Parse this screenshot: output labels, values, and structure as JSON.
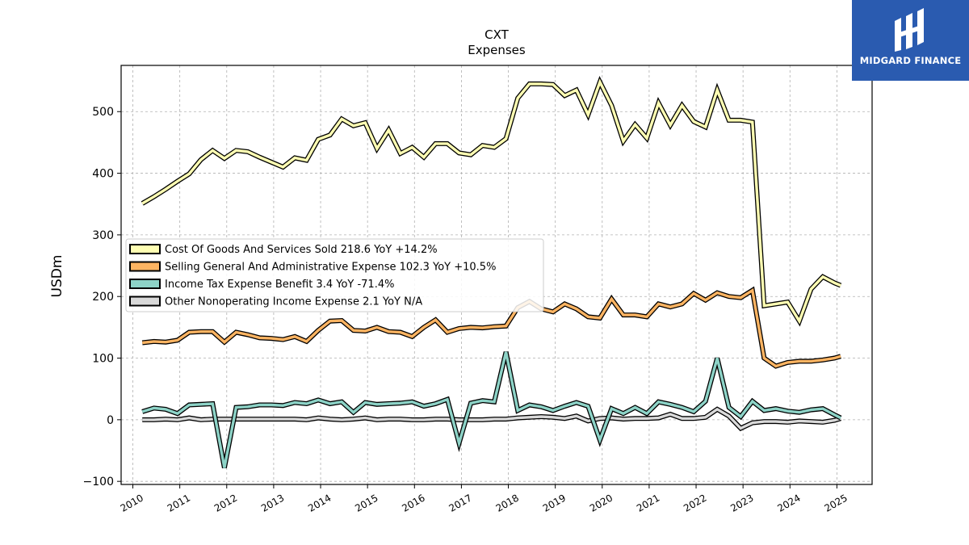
{
  "chart_data": {
    "type": "line",
    "title": "CXT",
    "subtitle": "Expenses",
    "ylabel": "USDm",
    "xlabel": "",
    "ylim": [
      -105,
      575
    ],
    "xlim": [
      2009.75,
      2025.75
    ],
    "yticks": [
      -100,
      0,
      100,
      200,
      300,
      400,
      500
    ],
    "ytick_labels": [
      "−100",
      "0",
      "100",
      "200",
      "300",
      "400",
      "500"
    ],
    "xticks": [
      2010,
      2011,
      2012,
      2013,
      2014,
      2015,
      2016,
      2017,
      2018,
      2019,
      2020,
      2021,
      2022,
      2023,
      2024,
      2025
    ],
    "xtick_labels": [
      "2010",
      "2011",
      "2012",
      "2013",
      "2014",
      "2015",
      "2016",
      "2017",
      "2018",
      "2019",
      "2020",
      "2021",
      "2022",
      "2023",
      "2024",
      "2025"
    ],
    "grid": true,
    "legend_position": "center-left",
    "series": [
      {
        "name": "Cost Of Goods And Services Sold",
        "legend": "Cost Of Goods And Services Sold  218.6 YoY +14.2%",
        "color": "#ffffb3",
        "x": [
          2010.2,
          2010.45,
          2010.7,
          2010.95,
          2011.2,
          2011.45,
          2011.7,
          2011.95,
          2012.2,
          2012.45,
          2012.7,
          2012.95,
          2013.2,
          2013.45,
          2013.7,
          2013.95,
          2014.2,
          2014.45,
          2014.7,
          2014.95,
          2015.2,
          2015.45,
          2015.7,
          2015.95,
          2016.2,
          2016.45,
          2016.7,
          2016.95,
          2017.2,
          2017.45,
          2017.7,
          2017.95,
          2018.2,
          2018.45,
          2018.7,
          2018.95,
          2019.2,
          2019.45,
          2019.7,
          2019.95,
          2020.2,
          2020.45,
          2020.7,
          2020.95,
          2021.2,
          2021.45,
          2021.7,
          2021.95,
          2022.2,
          2022.45,
          2022.7,
          2022.95,
          2023.2,
          2023.45,
          2023.7,
          2023.95,
          2024.2,
          2024.45,
          2024.7,
          2024.95,
          2025.08
        ],
        "values": [
          351,
          362,
          374,
          387,
          399,
          422,
          437,
          424,
          437,
          435,
          426,
          418,
          410,
          425,
          421,
          455,
          462,
          488,
          477,
          482,
          440,
          470,
          432,
          442,
          426,
          448,
          448,
          433,
          430,
          445,
          442,
          456,
          522,
          545,
          545,
          544,
          526,
          535,
          495,
          548,
          510,
          452,
          479,
          457,
          514,
          478,
          510,
          484,
          475,
          535,
          486,
          486,
          483,
          185,
          188,
          191,
          160,
          212,
          232,
          222,
          218
        ]
      },
      {
        "name": "Selling General And Administrative Expense",
        "legend": "Selling General And Administrative Expense  102.3 YoY +10.5%",
        "color": "#fdb462",
        "x": [
          2010.2,
          2010.45,
          2010.7,
          2010.95,
          2011.2,
          2011.45,
          2011.7,
          2011.95,
          2012.2,
          2012.45,
          2012.7,
          2012.95,
          2013.2,
          2013.45,
          2013.7,
          2013.95,
          2014.2,
          2014.45,
          2014.7,
          2014.95,
          2015.2,
          2015.45,
          2015.7,
          2015.95,
          2016.2,
          2016.45,
          2016.7,
          2016.95,
          2017.2,
          2017.45,
          2017.7,
          2017.95,
          2018.2,
          2018.45,
          2018.7,
          2018.95,
          2019.2,
          2019.45,
          2019.7,
          2019.95,
          2020.2,
          2020.45,
          2020.7,
          2020.95,
          2021.2,
          2021.45,
          2021.7,
          2021.95,
          2022.2,
          2022.45,
          2022.7,
          2022.95,
          2023.2,
          2023.45,
          2023.7,
          2023.95,
          2024.2,
          2024.45,
          2024.7,
          2024.95,
          2025.08
        ],
        "values": [
          125,
          127,
          126,
          129,
          142,
          143,
          143,
          126,
          142,
          138,
          133,
          132,
          130,
          135,
          127,
          145,
          160,
          161,
          145,
          144,
          150,
          143,
          142,
          135,
          150,
          162,
          142,
          148,
          150,
          149,
          151,
          152,
          182,
          192,
          180,
          175,
          188,
          180,
          167,
          165,
          196,
          170,
          170,
          167,
          188,
          183,
          188,
          205,
          194,
          206,
          200,
          198,
          210,
          100,
          87,
          93,
          95,
          95,
          97,
          100,
          103
        ]
      },
      {
        "name": "Income Tax Expense Benefit",
        "legend": "Income Tax Expense Benefit  3.4 YoY -71.4%",
        "color": "#8dd3c7",
        "x": [
          2010.2,
          2010.45,
          2010.7,
          2010.95,
          2011.2,
          2011.45,
          2011.7,
          2011.95,
          2012.2,
          2012.45,
          2012.7,
          2012.95,
          2013.2,
          2013.45,
          2013.7,
          2013.95,
          2014.2,
          2014.45,
          2014.7,
          2014.95,
          2015.2,
          2015.45,
          2015.7,
          2015.95,
          2016.2,
          2016.45,
          2016.7,
          2016.95,
          2017.2,
          2017.45,
          2017.7,
          2017.95,
          2018.2,
          2018.45,
          2018.7,
          2018.95,
          2019.2,
          2019.45,
          2019.7,
          2019.95,
          2020.2,
          2020.45,
          2020.7,
          2020.95,
          2021.2,
          2021.45,
          2021.7,
          2021.95,
          2022.2,
          2022.45,
          2022.7,
          2022.95,
          2023.2,
          2023.45,
          2023.7,
          2023.95,
          2024.2,
          2024.45,
          2024.7,
          2024.95,
          2025.08
        ],
        "values": [
          13,
          19,
          17,
          10,
          24,
          25,
          26,
          -78,
          20,
          21,
          24,
          24,
          23,
          28,
          26,
          32,
          26,
          29,
          12,
          28,
          25,
          26,
          27,
          29,
          22,
          26,
          33,
          -38,
          27,
          31,
          29,
          110,
          15,
          24,
          21,
          15,
          22,
          28,
          22,
          -33,
          18,
          10,
          20,
          10,
          29,
          25,
          20,
          13,
          30,
          100,
          20,
          5,
          30,
          15,
          18,
          14,
          12,
          16,
          18,
          8,
          3
        ]
      },
      {
        "name": "Other Nonoperating Income Expense",
        "legend": "Other Nonoperating Income Expense  2.1 YoY N/A",
        "color": "#d9d9d9",
        "x": [
          2010.2,
          2010.45,
          2010.7,
          2010.95,
          2011.2,
          2011.45,
          2011.7,
          2011.95,
          2012.2,
          2012.45,
          2012.7,
          2012.95,
          2013.2,
          2013.45,
          2013.7,
          2013.95,
          2014.2,
          2014.45,
          2014.7,
          2014.95,
          2015.2,
          2015.45,
          2015.7,
          2015.95,
          2016.2,
          2016.45,
          2016.7,
          2016.95,
          2017.2,
          2017.45,
          2017.7,
          2017.95,
          2018.2,
          2018.45,
          2018.7,
          2018.95,
          2019.2,
          2019.45,
          2019.7,
          2019.95,
          2020.2,
          2020.45,
          2020.7,
          2020.95,
          2021.2,
          2021.45,
          2021.7,
          2021.95,
          2022.2,
          2022.45,
          2022.7,
          2022.95,
          2023.2,
          2023.45,
          2023.7,
          2023.95,
          2024.2,
          2024.45,
          2024.7,
          2024.95,
          2025.08
        ],
        "values": [
          0,
          0,
          1,
          0,
          3,
          0,
          1,
          1,
          1,
          1,
          1,
          1,
          1,
          1,
          0,
          3,
          1,
          0,
          1,
          3,
          0,
          1,
          1,
          0,
          0,
          1,
          1,
          0,
          0,
          0,
          1,
          1,
          3,
          4,
          5,
          4,
          2,
          6,
          -2,
          2,
          3,
          1,
          2,
          2,
          3,
          9,
          2,
          2,
          4,
          17,
          6,
          -14,
          -5,
          -3,
          -3,
          -4,
          -2,
          -3,
          -4,
          -1,
          2
        ]
      }
    ]
  },
  "branding": {
    "logo_text": "MIDGARD FINANCE",
    "background_color": "#2a5bb0"
  }
}
